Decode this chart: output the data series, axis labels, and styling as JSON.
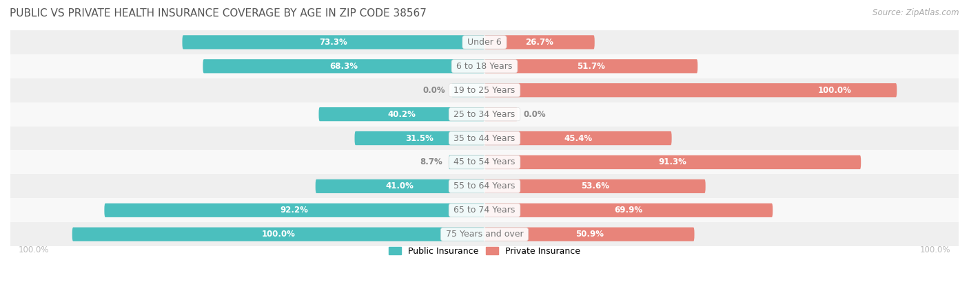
{
  "title": "PUBLIC VS PRIVATE HEALTH INSURANCE COVERAGE BY AGE IN ZIP CODE 38567",
  "source": "Source: ZipAtlas.com",
  "categories": [
    "Under 6",
    "6 to 18 Years",
    "19 to 25 Years",
    "25 to 34 Years",
    "35 to 44 Years",
    "45 to 54 Years",
    "55 to 64 Years",
    "65 to 74 Years",
    "75 Years and over"
  ],
  "public_values": [
    73.3,
    68.3,
    0.0,
    40.2,
    31.5,
    8.7,
    41.0,
    92.2,
    100.0
  ],
  "private_values": [
    26.7,
    51.7,
    100.0,
    0.0,
    45.4,
    91.3,
    53.6,
    69.9,
    50.9
  ],
  "public_color": "#4BBFBE",
  "public_color_light": "#A8DEDE",
  "private_color": "#E8847A",
  "private_color_light": "#F0B8B3",
  "row_bg_colors": [
    "#EFEFEF",
    "#F8F8F8"
  ],
  "title_color": "#555555",
  "value_color_inside": "#FFFFFF",
  "value_color_outside": "#888888",
  "center_label_color": "#777777",
  "axis_label_color": "#BBBBBB",
  "legend_public": "Public Insurance",
  "legend_private": "Private Insurance",
  "max_value": 100.0,
  "bar_height": 0.58,
  "title_fontsize": 11,
  "label_fontsize": 9,
  "value_fontsize": 8.5,
  "axis_label_fontsize": 8.5,
  "source_fontsize": 8.5,
  "stub_size": 8.0
}
